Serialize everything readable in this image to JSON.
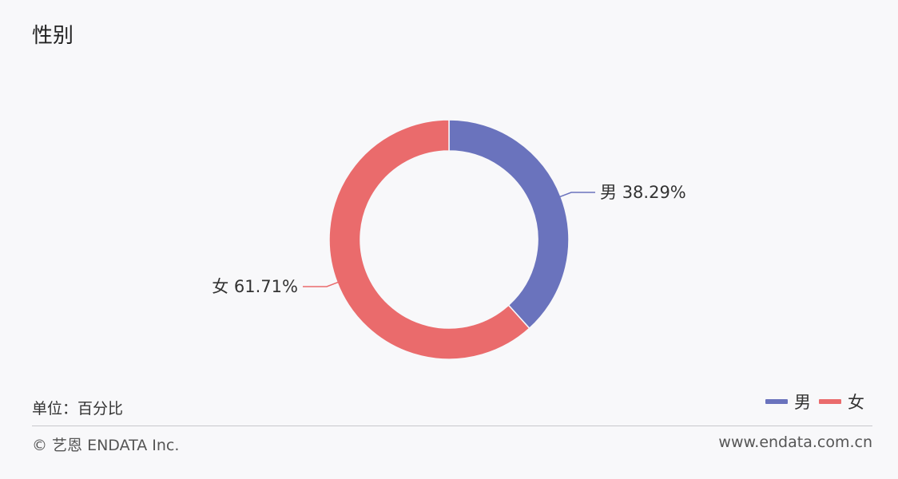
{
  "chart_data": {
    "type": "pie",
    "title": "性别",
    "donut": true,
    "slices": [
      {
        "name": "男",
        "value": 38.29,
        "label": "男 38.29%",
        "color": "#6a73bd"
      },
      {
        "name": "女",
        "value": 61.71,
        "label": "女 61.71%",
        "color": "#ea6b6c"
      }
    ],
    "legend": {
      "position": "bottom-right",
      "items": [
        "男",
        "女"
      ]
    }
  },
  "footer": {
    "unit_note": "单位：百分比",
    "copyright": "© 艺恩 ENDATA Inc.",
    "website": "www.endata.com.cn"
  }
}
